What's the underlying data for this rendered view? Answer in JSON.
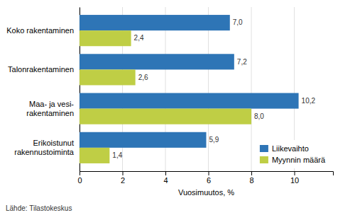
{
  "chart_data": {
    "type": "bar",
    "orientation": "horizontal",
    "categories": [
      "Erikoistunut\nrakennustoiminta",
      "Maa- ja vesi-\nrakentaminen",
      "Talonrakentaminen",
      "Koko rakentaminen"
    ],
    "series": [
      {
        "name": "Liikevaihto",
        "color": "#2E75B6",
        "values": [
          5.9,
          10.2,
          7.2,
          7.0
        ],
        "value_labels": [
          "5,9",
          "10,2",
          "7,2",
          "7,0"
        ]
      },
      {
        "name": "Myynnin määrä",
        "color": "#BFCE45",
        "values": [
          1.4,
          8.0,
          2.6,
          2.4
        ],
        "value_labels": [
          "1,4",
          "8,0",
          "2,6",
          "2,4"
        ]
      }
    ],
    "xlabel": "Vuosimuutos, %",
    "xlim": [
      0,
      11.8
    ],
    "xticks": [
      0,
      2,
      4,
      6,
      8,
      10
    ],
    "grid": true,
    "legend": "lower right",
    "data_labels": true,
    "footnote": "Lähde: Tilastokeskus"
  }
}
